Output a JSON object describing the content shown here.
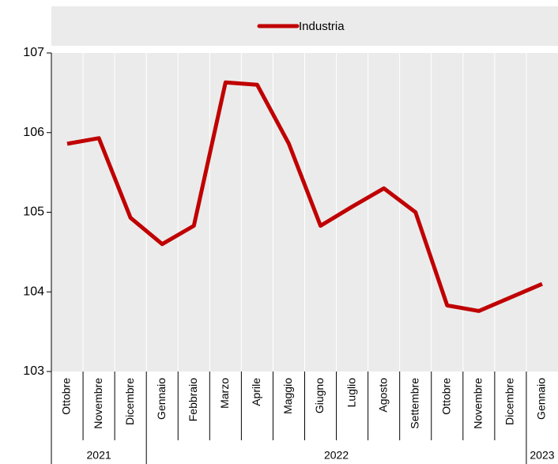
{
  "chart_data": {
    "type": "line",
    "categories": [
      "Ottobre",
      "Novembre",
      "Dicembre",
      "Gennaio",
      "Febbraio",
      "Marzo",
      "Aprile",
      "Maggio",
      "Giugno",
      "Luglio",
      "Agosto",
      "Settembre",
      "Ottobre",
      "Novembre",
      "Dicembre",
      "Gennaio"
    ],
    "x_groups": [
      {
        "label": "2021",
        "span": 3
      },
      {
        "label": "2022",
        "span": 12
      },
      {
        "label": "2023",
        "span": 1
      }
    ],
    "series": [
      {
        "name": "Industria",
        "color": "#c00000",
        "values": [
          105.86,
          105.93,
          104.93,
          104.6,
          104.83,
          106.63,
          106.6,
          105.86,
          104.83,
          105.07,
          105.3,
          105.0,
          103.83,
          103.76,
          103.93,
          104.1
        ]
      }
    ],
    "ylim": [
      103,
      107
    ],
    "yticks": [
      103,
      104,
      105,
      106,
      107
    ],
    "grid": true,
    "legend": "top"
  }
}
